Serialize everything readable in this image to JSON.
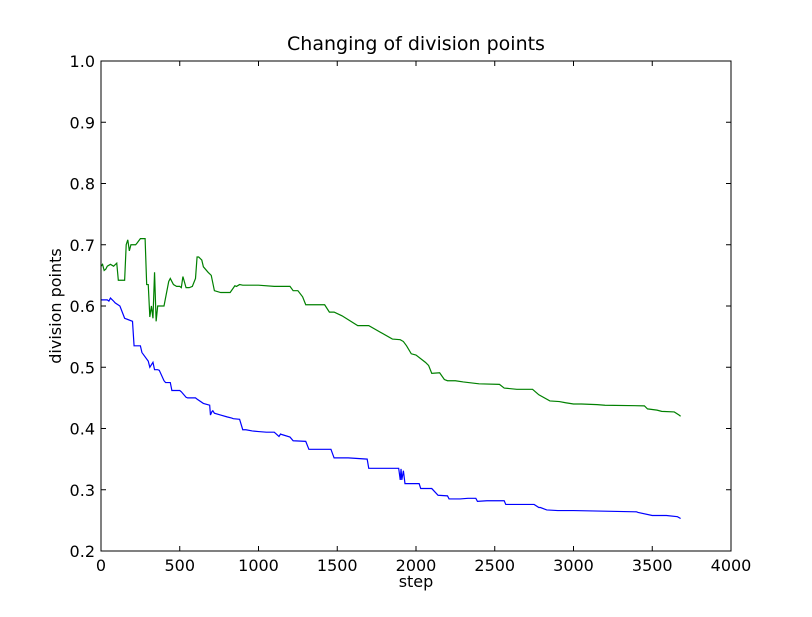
{
  "chart_data": {
    "type": "line",
    "title": "Changing of division points",
    "xlabel": "step",
    "ylabel": "division points",
    "xlim": [
      0,
      4000
    ],
    "ylim": [
      0.2,
      1.0
    ],
    "xticks": [
      0,
      500,
      1000,
      1500,
      2000,
      2500,
      3000,
      3500,
      4000
    ],
    "xtick_labels": [
      "0",
      "500",
      "1000",
      "1500",
      "2000",
      "2500",
      "3000",
      "3500",
      "4000"
    ],
    "yticks": [
      0.2,
      0.3,
      0.4,
      0.5,
      0.6,
      0.7,
      0.8,
      0.9,
      1.0
    ],
    "ytick_labels": [
      "0.2",
      "0.3",
      "0.4",
      "0.5",
      "0.6",
      "0.7",
      "0.8",
      "0.9",
      "1.0"
    ],
    "grid": false,
    "series": [
      {
        "color": "#0000ff",
        "x": [
          0,
          40,
          50,
          60,
          80,
          90,
          120,
          150,
          200,
          210,
          250,
          260,
          300,
          310,
          330,
          340,
          360,
          370,
          400,
          410,
          440,
          450,
          500,
          510,
          540,
          550,
          600,
          610,
          650,
          690,
          695,
          705,
          710,
          720,
          760,
          800,
          830,
          840,
          880,
          900,
          920,
          960,
          1000,
          1050,
          1100,
          1130,
          1140,
          1150,
          1200,
          1220,
          1300,
          1320,
          1460,
          1480,
          1570,
          1690,
          1700,
          1890,
          1900,
          1905,
          1910,
          1920,
          1930,
          2020,
          2030,
          2100,
          2140,
          2200,
          2210,
          2280,
          2330,
          2380,
          2390,
          2450,
          2560,
          2570,
          2750,
          2780,
          2790,
          2830,
          2900,
          2910,
          3000,
          3200,
          3400,
          3410,
          3500,
          3590,
          3660,
          3680
        ],
        "y": [
          0.61,
          0.61,
          0.608,
          0.613,
          0.608,
          0.605,
          0.6,
          0.58,
          0.575,
          0.535,
          0.535,
          0.524,
          0.51,
          0.5,
          0.508,
          0.496,
          0.496,
          0.495,
          0.478,
          0.475,
          0.475,
          0.462,
          0.462,
          0.46,
          0.451,
          0.45,
          0.45,
          0.448,
          0.441,
          0.438,
          0.422,
          0.428,
          0.429,
          0.425,
          0.422,
          0.419,
          0.417,
          0.416,
          0.415,
          0.398,
          0.398,
          0.396,
          0.395,
          0.394,
          0.394,
          0.387,
          0.391,
          0.39,
          0.386,
          0.38,
          0.379,
          0.366,
          0.366,
          0.352,
          0.352,
          0.35,
          0.335,
          0.335,
          0.316,
          0.334,
          0.316,
          0.331,
          0.31,
          0.31,
          0.302,
          0.302,
          0.291,
          0.29,
          0.285,
          0.285,
          0.286,
          0.286,
          0.281,
          0.282,
          0.282,
          0.276,
          0.276,
          0.271,
          0.271,
          0.267,
          0.266,
          0.266,
          0.266,
          0.265,
          0.264,
          0.263,
          0.258,
          0.258,
          0.256,
          0.253
        ]
      },
      {
        "color": "#008000",
        "x": [
          0,
          10,
          20,
          30,
          40,
          60,
          80,
          100,
          110,
          120,
          150,
          160,
          170,
          180,
          190,
          220,
          230,
          250,
          280,
          290,
          300,
          310,
          320,
          330,
          340,
          350,
          360,
          400,
          430,
          440,
          460,
          480,
          500,
          510,
          520,
          540,
          560,
          580,
          600,
          610,
          620,
          640,
          650,
          680,
          700,
          720,
          760,
          800,
          820,
          850,
          860,
          880,
          900,
          1000,
          1100,
          1200,
          1220,
          1250,
          1280,
          1300,
          1420,
          1450,
          1480,
          1530,
          1630,
          1700,
          1850,
          1900,
          1920,
          1940,
          1970,
          2000,
          2060,
          2080,
          2100,
          2150,
          2180,
          2200,
          2250,
          2300,
          2400,
          2530,
          2560,
          2640,
          2740,
          2780,
          2850,
          2910,
          2950,
          3000,
          3050,
          3150,
          3200,
          3450,
          3470,
          3530,
          3560,
          3640,
          3670,
          3680
        ],
        "y": [
          0.665,
          0.668,
          0.658,
          0.66,
          0.665,
          0.668,
          0.665,
          0.67,
          0.642,
          0.642,
          0.642,
          0.7,
          0.708,
          0.69,
          0.7,
          0.7,
          0.703,
          0.71,
          0.71,
          0.635,
          0.635,
          0.582,
          0.6,
          0.58,
          0.655,
          0.575,
          0.6,
          0.6,
          0.64,
          0.645,
          0.635,
          0.632,
          0.632,
          0.63,
          0.648,
          0.63,
          0.63,
          0.632,
          0.645,
          0.68,
          0.68,
          0.675,
          0.664,
          0.655,
          0.65,
          0.625,
          0.622,
          0.622,
          0.622,
          0.633,
          0.632,
          0.635,
          0.634,
          0.634,
          0.632,
          0.632,
          0.625,
          0.625,
          0.615,
          0.602,
          0.602,
          0.59,
          0.59,
          0.584,
          0.568,
          0.568,
          0.546,
          0.545,
          0.542,
          0.535,
          0.522,
          0.52,
          0.508,
          0.503,
          0.49,
          0.491,
          0.48,
          0.478,
          0.478,
          0.476,
          0.473,
          0.472,
          0.466,
          0.464,
          0.464,
          0.455,
          0.445,
          0.444,
          0.442,
          0.44,
          0.44,
          0.439,
          0.438,
          0.437,
          0.432,
          0.43,
          0.428,
          0.427,
          0.422,
          0.42
        ]
      }
    ]
  }
}
